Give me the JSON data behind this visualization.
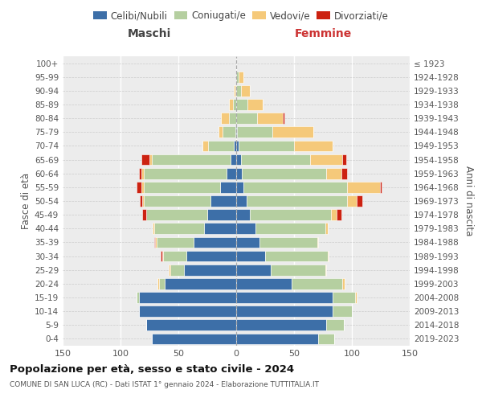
{
  "age_groups": [
    "0-4",
    "5-9",
    "10-14",
    "15-19",
    "20-24",
    "25-29",
    "30-34",
    "35-39",
    "40-44",
    "45-49",
    "50-54",
    "55-59",
    "60-64",
    "65-69",
    "70-74",
    "75-79",
    "80-84",
    "85-89",
    "90-94",
    "95-99",
    "100+"
  ],
  "birth_years": [
    "2019-2023",
    "2014-2018",
    "2009-2013",
    "2004-2008",
    "1999-2003",
    "1994-1998",
    "1989-1993",
    "1984-1988",
    "1979-1983",
    "1974-1978",
    "1969-1973",
    "1964-1968",
    "1959-1963",
    "1954-1958",
    "1949-1953",
    "1944-1948",
    "1939-1943",
    "1934-1938",
    "1929-1933",
    "1924-1928",
    "≤ 1923"
  ],
  "male_celibi": [
    73,
    78,
    84,
    84,
    62,
    45,
    43,
    37,
    28,
    25,
    22,
    14,
    8,
    5,
    2,
    1,
    0,
    0,
    0,
    0,
    0
  ],
  "male_coniugati": [
    0,
    0,
    0,
    2,
    5,
    12,
    20,
    32,
    43,
    53,
    58,
    66,
    72,
    68,
    22,
    11,
    6,
    3,
    1,
    0,
    0
  ],
  "male_vedovi": [
    0,
    0,
    0,
    0,
    1,
    1,
    1,
    1,
    1,
    0,
    1,
    2,
    2,
    2,
    5,
    3,
    7,
    3,
    1,
    0,
    0
  ],
  "male_divorziati": [
    0,
    0,
    0,
    0,
    0,
    0,
    1,
    1,
    0,
    3,
    2,
    4,
    2,
    7,
    0,
    0,
    0,
    0,
    0,
    0,
    0
  ],
  "female_nubili": [
    71,
    78,
    83,
    83,
    48,
    30,
    25,
    20,
    17,
    12,
    9,
    6,
    5,
    4,
    2,
    1,
    0,
    0,
    0,
    0,
    0
  ],
  "female_coniugate": [
    14,
    15,
    17,
    20,
    44,
    47,
    54,
    50,
    60,
    70,
    87,
    90,
    73,
    60,
    48,
    30,
    18,
    10,
    4,
    2,
    0
  ],
  "female_vedove": [
    0,
    0,
    0,
    1,
    2,
    1,
    1,
    1,
    2,
    5,
    8,
    28,
    13,
    28,
    33,
    36,
    22,
    13,
    8,
    4,
    0
  ],
  "female_divorziate": [
    0,
    0,
    0,
    0,
    0,
    0,
    0,
    0,
    0,
    4,
    5,
    2,
    5,
    3,
    0,
    0,
    2,
    0,
    0,
    0,
    0
  ],
  "colors": {
    "celibi": "#3d6fa8",
    "coniugati": "#b5cfa0",
    "vedovi": "#f5c97a",
    "divorziati": "#cc2211"
  },
  "title": "Popolazione per età, sesso e stato civile - 2024",
  "subtitle": "COMUNE DI SAN LUCA (RC) - Dati ISTAT 1° gennaio 2024 - Elaborazione TUTTITALIA.IT",
  "xlabel_left": "Maschi",
  "xlabel_right": "Femmine",
  "ylabel_left": "Fasce di età",
  "ylabel_right": "Anni di nascita",
  "xlim": 150,
  "legend_labels": [
    "Celibi/Nubili",
    "Coniugati/e",
    "Vedovi/e",
    "Divorziati/e"
  ]
}
